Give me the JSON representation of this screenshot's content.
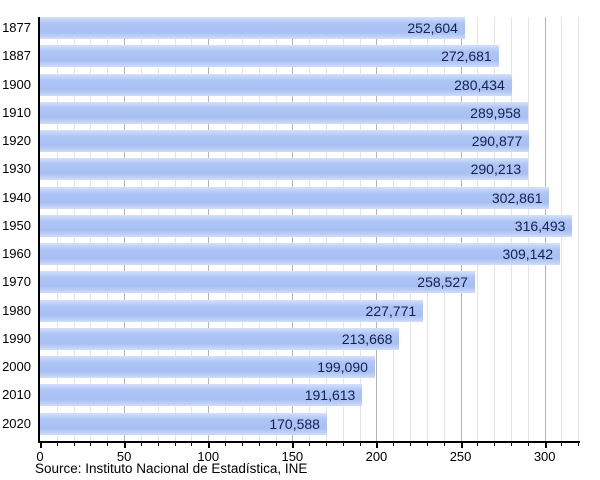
{
  "chart_data": {
    "type": "bar",
    "orientation": "horizontal",
    "title": "",
    "xlabel": "",
    "ylabel": "",
    "categories": [
      "1877",
      "1887",
      "1900",
      "1910",
      "1920",
      "1930",
      "1940",
      "1950",
      "1960",
      "1970",
      "1980",
      "1990",
      "2000",
      "2010",
      "2020"
    ],
    "values": [
      252604,
      272681,
      280434,
      289958,
      290877,
      290213,
      302861,
      316493,
      309142,
      258527,
      227771,
      213668,
      199090,
      191613,
      170588
    ],
    "value_labels": [
      "252,604",
      "272,681",
      "280,434",
      "289,958",
      "290,877",
      "290,213",
      "302,861",
      "316,493",
      "309,142",
      "258,527",
      "227,771",
      "213,668",
      "199,090",
      "191,613",
      "170,588"
    ],
    "x_axis_unit": "thousands",
    "xlim": [
      0,
      321
    ],
    "x_major_ticks": [
      0,
      50,
      100,
      150,
      200,
      250,
      300
    ],
    "x_minor_tick_step": 10,
    "grid": "vertical, minor every 10 and major every 50",
    "legend": "none",
    "source": "Source: Instituto Nacional de Estadística, INE",
    "colors": {
      "bar": "#aac2f4",
      "bar_edge_light": "#d6e1fa",
      "value_text": "#16214d",
      "axis": "#000000",
      "grid_major": "#b4b4b4",
      "grid_minor": "#e4e4e4",
      "background": "#ffffff"
    }
  }
}
